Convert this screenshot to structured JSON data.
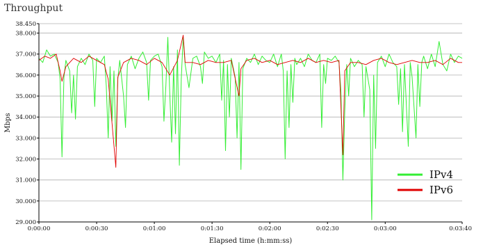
{
  "chart_data": {
    "type": "line",
    "title": "Throughput",
    "xlabel": "Elapsed time (h:mm:ss)",
    "ylabel": "Mbps",
    "ylim": [
      29.0,
      38.45
    ],
    "xlim": [
      0,
      220
    ],
    "y_ticks": [
      29.0,
      30.0,
      31.0,
      32.0,
      33.0,
      34.0,
      35.0,
      36.0,
      37.0,
      38.0,
      38.45
    ],
    "y_tick_labels": [
      "29.000",
      "30.000",
      "31.000",
      "32.000",
      "33.000",
      "34.000",
      "35.000",
      "36.000",
      "37.000",
      "38.000",
      "38.450"
    ],
    "x_ticks": [
      0,
      30,
      60,
      90,
      120,
      150,
      180,
      220
    ],
    "x_tick_labels": [
      "0:00:00",
      "0:00:30",
      "0:01:00",
      "0:01:30",
      "0:02:00",
      "0:02:30",
      "0:03:00",
      "0:03:40"
    ],
    "grid": "horizontal",
    "legend_position": "bottom-right",
    "series": [
      {
        "name": "IPv4",
        "color": "#33ee33",
        "points": [
          [
            0,
            36.8
          ],
          [
            2,
            36.6
          ],
          [
            4,
            37.2
          ],
          [
            6,
            36.9
          ],
          [
            8,
            37.0
          ],
          [
            10,
            36.6
          ],
          [
            11,
            35.8
          ],
          [
            12,
            32.1
          ],
          [
            13,
            35.9
          ],
          [
            14,
            36.7
          ],
          [
            16,
            36.2
          ],
          [
            17,
            34.2
          ],
          [
            18,
            36.0
          ],
          [
            19,
            33.9
          ],
          [
            20,
            36.4
          ],
          [
            22,
            36.8
          ],
          [
            24,
            36.5
          ],
          [
            26,
            37.0
          ],
          [
            28,
            36.7
          ],
          [
            29,
            34.5
          ],
          [
            30,
            36.8
          ],
          [
            32,
            36.6
          ],
          [
            34,
            36.9
          ],
          [
            35,
            35.5
          ],
          [
            36,
            33.0
          ],
          [
            37,
            36.4
          ],
          [
            38,
            33.8
          ],
          [
            39,
            36.2
          ],
          [
            40,
            32.6
          ],
          [
            41,
            35.8
          ],
          [
            42,
            36.7
          ],
          [
            44,
            35.0
          ],
          [
            45,
            33.5
          ],
          [
            46,
            36.5
          ],
          [
            48,
            36.9
          ],
          [
            50,
            36.3
          ],
          [
            52,
            36.8
          ],
          [
            54,
            37.1
          ],
          [
            56,
            36.6
          ],
          [
            57,
            34.8
          ],
          [
            58,
            36.7
          ],
          [
            60,
            36.9
          ],
          [
            62,
            37.0
          ],
          [
            64,
            36.4
          ],
          [
            65,
            33.8
          ],
          [
            66,
            35.5
          ],
          [
            67,
            37.8
          ],
          [
            68,
            35.2
          ],
          [
            69,
            32.8
          ],
          [
            70,
            36.4
          ],
          [
            71,
            33.2
          ],
          [
            72,
            37.2
          ],
          [
            73,
            31.7
          ],
          [
            74,
            35.8
          ],
          [
            75,
            37.8
          ],
          [
            76,
            36.5
          ],
          [
            78,
            35.4
          ],
          [
            80,
            36.8
          ],
          [
            82,
            36.9
          ],
          [
            84,
            36.4
          ],
          [
            85,
            35.6
          ],
          [
            86,
            37.1
          ],
          [
            88,
            36.8
          ],
          [
            90,
            36.9
          ],
          [
            92,
            36.6
          ],
          [
            94,
            37.0
          ],
          [
            95,
            34.8
          ],
          [
            96,
            36.7
          ],
          [
            97,
            32.4
          ],
          [
            98,
            36.5
          ],
          [
            99,
            34.0
          ],
          [
            100,
            36.8
          ],
          [
            102,
            35.9
          ],
          [
            103,
            33.0
          ],
          [
            104,
            36.6
          ],
          [
            105,
            31.5
          ],
          [
            106,
            36.3
          ],
          [
            108,
            36.8
          ],
          [
            110,
            36.6
          ],
          [
            112,
            37.0
          ],
          [
            114,
            36.5
          ],
          [
            116,
            36.9
          ],
          [
            118,
            36.7
          ],
          [
            120,
            36.6
          ],
          [
            122,
            37.0
          ],
          [
            124,
            36.4
          ],
          [
            126,
            37.0
          ],
          [
            127,
            36.2
          ],
          [
            128,
            32.0
          ],
          [
            129,
            36.2
          ],
          [
            130,
            33.5
          ],
          [
            131,
            36.5
          ],
          [
            132,
            34.7
          ],
          [
            133,
            36.8
          ],
          [
            134,
            36.5
          ],
          [
            136,
            36.8
          ],
          [
            138,
            36.4
          ],
          [
            140,
            37.0
          ],
          [
            142,
            36.7
          ],
          [
            144,
            36.6
          ],
          [
            146,
            37.0
          ],
          [
            147,
            33.5
          ],
          [
            148,
            36.5
          ],
          [
            149,
            35.6
          ],
          [
            150,
            36.8
          ],
          [
            152,
            36.7
          ],
          [
            154,
            36.9
          ],
          [
            156,
            36.6
          ],
          [
            157,
            35.2
          ],
          [
            158,
            31.0
          ],
          [
            159,
            34.3
          ],
          [
            160,
            36.5
          ],
          [
            161,
            35.0
          ],
          [
            162,
            36.8
          ],
          [
            164,
            36.4
          ],
          [
            166,
            36.7
          ],
          [
            168,
            36.5
          ],
          [
            169,
            34.0
          ],
          [
            170,
            36.4
          ],
          [
            172,
            35.3
          ],
          [
            173,
            29.1
          ],
          [
            174,
            36.0
          ],
          [
            175,
            32.5
          ],
          [
            176,
            36.6
          ],
          [
            178,
            36.9
          ],
          [
            180,
            36.4
          ],
          [
            182,
            37.0
          ],
          [
            184,
            36.6
          ],
          [
            186,
            36.4
          ],
          [
            187,
            34.6
          ],
          [
            188,
            36.3
          ],
          [
            189,
            33.3
          ],
          [
            190,
            36.5
          ],
          [
            192,
            32.6
          ],
          [
            193,
            36.6
          ],
          [
            194,
            35.9
          ],
          [
            196,
            33.0
          ],
          [
            197,
            36.5
          ],
          [
            198,
            34.5
          ],
          [
            199,
            36.6
          ],
          [
            200,
            36.9
          ],
          [
            202,
            36.3
          ],
          [
            204,
            37.0
          ],
          [
            206,
            36.4
          ],
          [
            208,
            37.6
          ],
          [
            210,
            36.5
          ],
          [
            212,
            36.2
          ],
          [
            214,
            37.0
          ],
          [
            216,
            36.6
          ],
          [
            218,
            36.9
          ],
          [
            220,
            36.8
          ]
        ]
      },
      {
        "name": "IPv6",
        "color": "#e00000",
        "points": [
          [
            0,
            36.7
          ],
          [
            3,
            36.9
          ],
          [
            6,
            36.8
          ],
          [
            9,
            37.0
          ],
          [
            11,
            36.2
          ],
          [
            12,
            35.7
          ],
          [
            14,
            36.4
          ],
          [
            18,
            36.8
          ],
          [
            22,
            36.6
          ],
          [
            26,
            36.9
          ],
          [
            30,
            36.7
          ],
          [
            34,
            36.5
          ],
          [
            36,
            35.8
          ],
          [
            40,
            31.6
          ],
          [
            41,
            35.9
          ],
          [
            44,
            36.6
          ],
          [
            48,
            36.8
          ],
          [
            52,
            36.7
          ],
          [
            56,
            36.5
          ],
          [
            60,
            36.8
          ],
          [
            64,
            36.6
          ],
          [
            68,
            36.0
          ],
          [
            72,
            36.7
          ],
          [
            75,
            37.9
          ],
          [
            76,
            36.6
          ],
          [
            80,
            36.6
          ],
          [
            84,
            36.5
          ],
          [
            88,
            36.7
          ],
          [
            92,
            36.6
          ],
          [
            96,
            36.6
          ],
          [
            100,
            36.7
          ],
          [
            104,
            35.0
          ],
          [
            105,
            36.3
          ],
          [
            108,
            36.7
          ],
          [
            112,
            36.8
          ],
          [
            116,
            36.6
          ],
          [
            120,
            36.7
          ],
          [
            124,
            36.5
          ],
          [
            128,
            36.6
          ],
          [
            132,
            36.7
          ],
          [
            136,
            36.6
          ],
          [
            140,
            36.8
          ],
          [
            144,
            36.6
          ],
          [
            148,
            36.7
          ],
          [
            152,
            36.6
          ],
          [
            156,
            36.7
          ],
          [
            158,
            32.2
          ],
          [
            159,
            36.2
          ],
          [
            162,
            36.6
          ],
          [
            166,
            36.6
          ],
          [
            170,
            36.5
          ],
          [
            174,
            36.7
          ],
          [
            178,
            36.8
          ],
          [
            182,
            36.6
          ],
          [
            186,
            36.5
          ],
          [
            190,
            36.6
          ],
          [
            194,
            36.7
          ],
          [
            198,
            36.6
          ],
          [
            202,
            36.6
          ],
          [
            206,
            36.7
          ],
          [
            210,
            36.5
          ],
          [
            214,
            36.8
          ],
          [
            218,
            36.6
          ],
          [
            220,
            36.6
          ]
        ]
      }
    ]
  }
}
